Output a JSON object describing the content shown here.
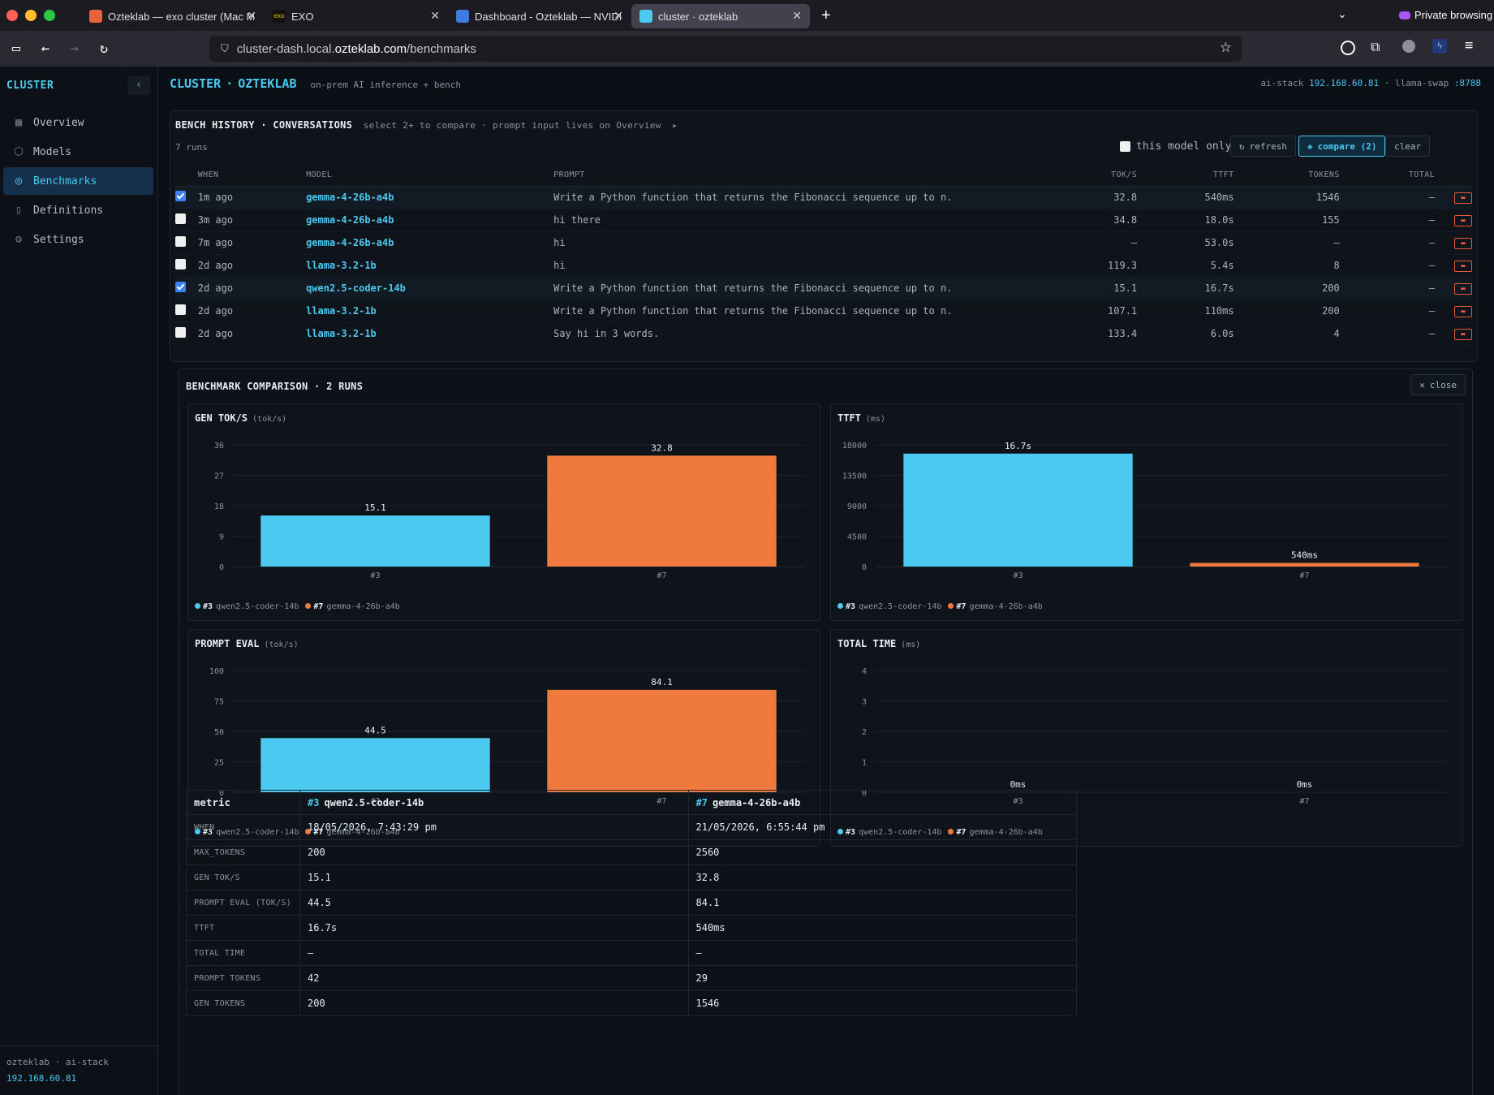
{
  "browser": {
    "tabs": [
      {
        "title": "Ozteklab — exo cluster (Mac Mi",
        "fav": "#e8623a"
      },
      {
        "title": "EXO",
        "fav": "#111111"
      },
      {
        "title": "Dashboard - Ozteklab — NVIDIA",
        "fav": "#3d7be0"
      },
      {
        "title": "cluster · ozteklab",
        "fav": "#4cc9f0"
      }
    ],
    "url_host_pre": "cluster-dash.local.",
    "url_host": "ozteklab.com",
    "url_path": "/benchmarks",
    "private_label": "Private browsing"
  },
  "sidebar": {
    "brand": "CLUSTER",
    "items": [
      {
        "label": "Overview",
        "icon": "grid-icon"
      },
      {
        "label": "Models",
        "icon": "cube-icon"
      },
      {
        "label": "Benchmarks",
        "icon": "gauge-icon"
      },
      {
        "label": "Definitions",
        "icon": "book-icon"
      },
      {
        "label": "Settings",
        "icon": "gear-icon"
      }
    ],
    "footer_line": "ozteklab · ai-stack",
    "footer_ip": "192.168.60.81"
  },
  "header": {
    "title_left": "CLUSTER",
    "title_right": "OZTEKLAB",
    "subtitle": "on-prem AI inference + bench",
    "host_label": "ai-stack",
    "host_ip": "192.168.60.81",
    "swap_label": "llama-swap",
    "swap_port": ":8788"
  },
  "history": {
    "title": "BENCH HISTORY · CONVERSATIONS",
    "subtitle": "select 2+ to compare · prompt input lives on Overview",
    "runs": "7 runs",
    "filter_label": "this model only",
    "refresh_label": "refresh",
    "compare_label": "compare (2)",
    "clear_label": "clear",
    "columns": [
      "WHEN",
      "MODEL",
      "PROMPT",
      "TOK/S",
      "TTFT",
      "TOKENS",
      "TOTAL"
    ],
    "rows": [
      {
        "checked": true,
        "when": "1m ago",
        "model": "gemma-4-26b-a4b",
        "prompt": "Write a Python function that returns the Fibonacci sequence up to n.",
        "toks": "32.8",
        "ttft": "540ms",
        "tokens": "1546",
        "total": "—"
      },
      {
        "checked": false,
        "when": "3m ago",
        "model": "gemma-4-26b-a4b",
        "prompt": "hi there",
        "toks": "34.8",
        "ttft": "18.0s",
        "tokens": "155",
        "total": "—"
      },
      {
        "checked": false,
        "when": "7m ago",
        "model": "gemma-4-26b-a4b",
        "prompt": "hi",
        "toks": "—",
        "ttft": "53.0s",
        "tokens": "—",
        "total": "—"
      },
      {
        "checked": false,
        "when": "2d ago",
        "model": "llama-3.2-1b",
        "prompt": "hi",
        "toks": "119.3",
        "ttft": "5.4s",
        "tokens": "8",
        "total": "—"
      },
      {
        "checked": true,
        "when": "2d ago",
        "model": "qwen2.5-coder-14b",
        "prompt": "Write a Python function that returns the Fibonacci sequence up to n.",
        "toks": "15.1",
        "ttft": "16.7s",
        "tokens": "200",
        "total": "—"
      },
      {
        "checked": false,
        "when": "2d ago",
        "model": "llama-3.2-1b",
        "prompt": "Write a Python function that returns the Fibonacci sequence up to n.",
        "toks": "107.1",
        "ttft": "110ms",
        "tokens": "200",
        "total": "—"
      },
      {
        "checked": false,
        "when": "2d ago",
        "model": "llama-3.2-1b",
        "prompt": "Say hi in 3 words.",
        "toks": "133.4",
        "ttft": "6.0s",
        "tokens": "4",
        "total": "—"
      }
    ]
  },
  "comparison": {
    "title": "BENCHMARK COMPARISON · 2 RUNS",
    "close_label": "close",
    "legend": [
      {
        "id": "#3",
        "name": "qwen2.5-coder-14b",
        "color": "#4cc9f0"
      },
      {
        "id": "#7",
        "name": "gemma-4-26b-a4b",
        "color": "#f07a3e"
      }
    ],
    "metrics_table": {
      "header": [
        "metric",
        "#3",
        "qwen2.5-coder-14b",
        "#7",
        "gemma-4-26b-a4b"
      ],
      "rows": [
        {
          "k": "WHEN",
          "a": "18/05/2026, 7:43:29 pm",
          "b": "21/05/2026, 6:55:44 pm"
        },
        {
          "k": "MAX_TOKENS",
          "a": "200",
          "b": "2560"
        },
        {
          "k": "GEN TOK/S",
          "a": "15.1",
          "b": "32.8"
        },
        {
          "k": "PROMPT EVAL (TOK/S)",
          "a": "44.5",
          "b": "84.1"
        },
        {
          "k": "TTFT",
          "a": "16.7s",
          "b": "540ms"
        },
        {
          "k": "TOTAL TIME",
          "a": "—",
          "b": "—"
        },
        {
          "k": "PROMPT TOKENS",
          "a": "42",
          "b": "29"
        },
        {
          "k": "GEN TOKENS",
          "a": "200",
          "b": "1546"
        }
      ]
    }
  },
  "chart_data": [
    {
      "type": "bar",
      "title": "GEN TOK/S",
      "unit": "(tok/s)",
      "categories": [
        "#3",
        "#7"
      ],
      "values": [
        15.1,
        32.8
      ],
      "labels": [
        "15.1",
        "32.8"
      ],
      "ylim": [
        0,
        36
      ],
      "yticks": [
        0,
        9,
        18,
        27,
        36
      ],
      "colors": [
        "#4cc9f0",
        "#f07a3e"
      ]
    },
    {
      "type": "bar",
      "title": "TTFT",
      "unit": "(ms)",
      "categories": [
        "#3",
        "#7"
      ],
      "values": [
        16700,
        540
      ],
      "labels": [
        "16.7s",
        "540ms"
      ],
      "ylim": [
        0,
        18000
      ],
      "yticks": [
        0,
        4500,
        9000,
        13500,
        18000
      ],
      "colors": [
        "#4cc9f0",
        "#f07a3e"
      ]
    },
    {
      "type": "bar",
      "title": "PROMPT EVAL",
      "unit": "(tok/s)",
      "categories": [
        "#3",
        "#7"
      ],
      "values": [
        44.5,
        84.1
      ],
      "labels": [
        "44.5",
        "84.1"
      ],
      "ylim": [
        0,
        100
      ],
      "yticks": [
        0,
        25,
        50,
        75,
        100
      ],
      "colors": [
        "#4cc9f0",
        "#f07a3e"
      ]
    },
    {
      "type": "bar",
      "title": "TOTAL TIME",
      "unit": "(ms)",
      "categories": [
        "#3",
        "#7"
      ],
      "values": [
        0,
        0
      ],
      "labels": [
        "0ms",
        "0ms"
      ],
      "ylim": [
        0,
        4
      ],
      "yticks": [
        0,
        1,
        2,
        3,
        4
      ],
      "colors": [
        "#4cc9f0",
        "#f07a3e"
      ]
    }
  ]
}
